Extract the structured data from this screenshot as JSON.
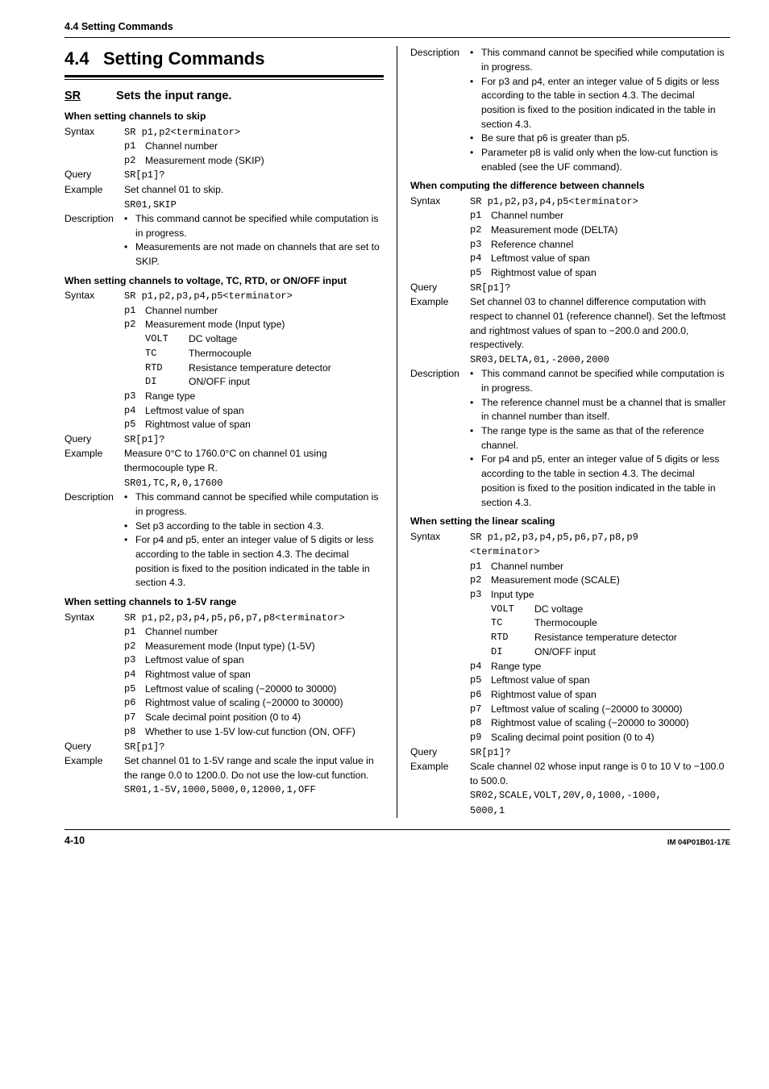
{
  "page": {
    "running_head": "4.4  Setting Commands",
    "page_num": "4-10",
    "doc_id": "IM 04P01B01-17E",
    "section_num": "4.4",
    "section_title": "Setting Commands"
  },
  "left": {
    "cmd_id": "SR",
    "cmd_title": "Sets the input range.",
    "blk1": {
      "head": "When setting channels to skip",
      "syntax_lab": "Syntax",
      "syntax_val": "SR p1,p2<terminator>",
      "p1n": "p1",
      "p1d": "Channel number",
      "p2n": "p2",
      "p2d": "Measurement mode (SKIP)",
      "query_lab": "Query",
      "query_val": "SR[p1]?",
      "ex_lab": "Example",
      "ex_txt": "Set channel 01 to skip.",
      "ex_code": "SR01,SKIP",
      "desc_lab": "Description",
      "d1": "This command cannot be specified while computation is in progress.",
      "d2": "Measurements are not made on channels that are set to SKIP."
    },
    "blk2": {
      "head": "When setting channels to voltage, TC, RTD, or ON/OFF input",
      "syntax_lab": "Syntax",
      "syntax_val": "SR p1,p2,p3,p4,p5<terminator>",
      "p1n": "p1",
      "p1d": "Channel number",
      "p2n": "p2",
      "p2d": "Measurement mode (Input type)",
      "i1k": "VOLT",
      "i1v": "DC voltage",
      "i2k": "TC",
      "i2v": "Thermocouple",
      "i3k": "RTD",
      "i3v": "Resistance temperature detector",
      "i4k": "DI",
      "i4v": "ON/OFF input",
      "p3n": "p3",
      "p3d": "Range type",
      "p4n": "p4",
      "p4d": "Leftmost value of span",
      "p5n": "p5",
      "p5d": "Rightmost value of span",
      "query_lab": "Query",
      "query_val": "SR[p1]?",
      "ex_lab": "Example",
      "ex_txt": "Measure 0°C to 1760.0°C on channel 01 using thermocouple type R.",
      "ex_code": "SR01,TC,R,0,17600",
      "desc_lab": "Description",
      "d1": "This command cannot be specified while computation is in progress.",
      "d2": "Set p3 according to the table in section 4.3.",
      "d3": "For p4 and p5, enter an integer value of 5 digits or less according to the table in section 4.3. The decimal position is fixed to the position indicated in the table in section 4.3."
    },
    "blk3": {
      "head": "When setting channels to 1-5V range",
      "syntax_lab": "Syntax",
      "syntax_val": "SR p1,p2,p3,p4,p5,p6,p7,p8<terminator>",
      "p1n": "p1",
      "p1d": "Channel number",
      "p2n": "p2",
      "p2d": "Measurement mode (Input type) (1-5V)",
      "p3n": "p3",
      "p3d": "Leftmost value of span",
      "p4n": "p4",
      "p4d": "Rightmost value of span",
      "p5n": "p5",
      "p5d": "Leftmost value of scaling (−20000 to 30000)",
      "p6n": "p6",
      "p6d": "Rightmost value of scaling (−20000 to 30000)",
      "p7n": "p7",
      "p7d": "Scale decimal point position (0 to 4)",
      "p8n": "p8",
      "p8d": "Whether to use 1-5V low-cut function (ON, OFF)",
      "query_lab": "Query",
      "query_val": "SR[p1]?",
      "ex_lab": "Example",
      "ex_txt": "Set channel 01 to 1-5V range and scale the input value in the range 0.0 to 1200.0. Do not use the low-cut function.",
      "ex_code": "SR01,1-5V,1000,5000,0,12000,1,OFF"
    }
  },
  "right": {
    "top": {
      "desc_lab": "Description",
      "d1": "This command cannot be specified while computation is in progress.",
      "d2": "For p3 and p4, enter an integer value of 5 digits or less according to the table in section 4.3. The decimal position is fixed to the position indicated in the table in section 4.3.",
      "d3": "Be sure that p6 is greater than p5.",
      "d4": "Parameter p8 is valid only when the low-cut function is enabled (see the UF command)."
    },
    "blk1": {
      "head": "When computing the difference between channels",
      "syntax_lab": "Syntax",
      "syntax_val": "SR p1,p2,p3,p4,p5<terminator>",
      "p1n": "p1",
      "p1d": "Channel number",
      "p2n": "p2",
      "p2d": "Measurement mode (DELTA)",
      "p3n": "p3",
      "p3d": "Reference channel",
      "p4n": "p4",
      "p4d": "Leftmost value of span",
      "p5n": "p5",
      "p5d": "Rightmost value of span",
      "query_lab": "Query",
      "query_val": "SR[p1]?",
      "ex_lab": "Example",
      "ex_txt": "Set channel 03 to channel difference computation with respect to channel 01 (reference channel). Set the leftmost and rightmost values of span to −200.0 and 200.0, respectively.",
      "ex_code": "SR03,DELTA,01,-2000,2000",
      "desc_lab": "Description",
      "d1": "This command cannot be specified while computation is in progress.",
      "d2": "The reference channel must be a channel that is smaller in channel number than itself.",
      "d3": "The range type is the same as that of the reference channel.",
      "d4": "For p4 and p5, enter an integer value of 5 digits or less according to the table in section 4.3. The decimal position is fixed to the position indicated in the table in section 4.3."
    },
    "blk2": {
      "head": "When setting the linear scaling",
      "syntax_lab": "Syntax",
      "syntax_l1": "SR p1,p2,p3,p4,p5,p6,p7,p8,p9",
      "syntax_l2": "<terminator>",
      "p1n": "p1",
      "p1d": "Channel number",
      "p2n": "p2",
      "p2d": "Measurement mode (SCALE)",
      "p3n": "p3",
      "p3d": "Input type",
      "i1k": "VOLT",
      "i1v": "DC voltage",
      "i2k": "TC",
      "i2v": "Thermocouple",
      "i3k": "RTD",
      "i3v": "Resistance temperature detector",
      "i4k": "DI",
      "i4v": "ON/OFF input",
      "p4n": "p4",
      "p4d": "Range type",
      "p5n": "p5",
      "p5d": "Leftmost value of span",
      "p6n": "p6",
      "p6d": "Rightmost value of span",
      "p7n": "p7",
      "p7d": "Leftmost value of scaling (−20000 to 30000)",
      "p8n": "p8",
      "p8d": "Rightmost value of scaling (−20000 to 30000)",
      "p9n": "p9",
      "p9d": "Scaling decimal point position (0 to 4)",
      "query_lab": "Query",
      "query_val": "SR[p1]?",
      "ex_lab": "Example",
      "ex_txt": "Scale channel 02 whose input range is 0 to 10 V to −100.0 to 500.0.",
      "ex_code1": "SR02,SCALE,VOLT,20V,0,1000,-1000,",
      "ex_code2": "5000,1"
    }
  }
}
